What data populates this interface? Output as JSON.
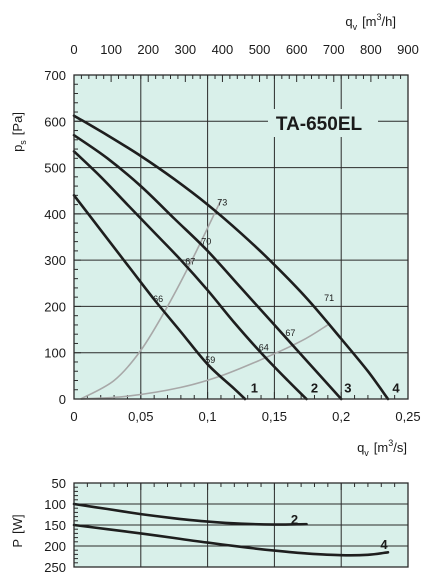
{
  "colors": {
    "plot_bg": "#d9f0ea",
    "grid": "#2b2b2b",
    "curve": "#1e1e1e",
    "efficiency": "#a8a8a8"
  },
  "chart_data": [
    {
      "type": "line",
      "title": "TA-650EL",
      "xlabel_bottom": {
        "base": "q",
        "sub": "v",
        "unit_pre": "[m",
        "unit_sup": "3",
        "unit_post": "/s]"
      },
      "xlabel_top": {
        "base": "q",
        "sub": "v",
        "unit_pre": "[m",
        "unit_sup": "3",
        "unit_post": "/h]"
      },
      "ylabel": {
        "base": "p",
        "sub": "s",
        "unit": "[Pa]"
      },
      "xlim": [
        0,
        0.25
      ],
      "ylim": [
        0,
        700
      ],
      "x_ticks": [
        0,
        0.05,
        0.1,
        0.15,
        0.2,
        0.25
      ],
      "x_tick_labels": [
        "0",
        "0,05",
        "0,1",
        "0,15",
        "0,2",
        "0,25"
      ],
      "top_ticks": [
        0,
        100,
        200,
        300,
        400,
        500,
        600,
        700,
        800,
        900
      ],
      "top_tick_labels": [
        "0",
        "100",
        "200",
        "300",
        "400",
        "500",
        "600",
        "700",
        "800",
        "900"
      ],
      "top_range_m3h": [
        0,
        900
      ],
      "y_ticks": [
        0,
        100,
        200,
        300,
        400,
        500,
        600,
        700
      ],
      "y_tick_labels": [
        "0",
        "100",
        "200",
        "300",
        "400",
        "500",
        "600",
        "700"
      ],
      "grid": true,
      "series": [
        {
          "name": "1",
          "x": [
            0,
            0.02,
            0.04,
            0.06,
            0.08,
            0.1,
            0.12,
            0.128
          ],
          "y": [
            440,
            365,
            290,
            215,
            145,
            75,
            22,
            0
          ]
        },
        {
          "name": "2",
          "x": [
            0,
            0.02,
            0.04,
            0.06,
            0.08,
            0.1,
            0.12,
            0.14,
            0.16,
            0.174
          ],
          "y": [
            535,
            480,
            420,
            360,
            300,
            235,
            165,
            100,
            40,
            0
          ]
        },
        {
          "name": "3",
          "x": [
            0,
            0.025,
            0.05,
            0.075,
            0.1,
            0.125,
            0.15,
            0.175,
            0.2
          ],
          "y": [
            570,
            520,
            460,
            390,
            320,
            240,
            160,
            80,
            0
          ]
        },
        {
          "name": "4",
          "x": [
            0,
            0.025,
            0.05,
            0.075,
            0.1,
            0.125,
            0.15,
            0.175,
            0.2,
            0.22,
            0.235
          ],
          "y": [
            612,
            570,
            525,
            475,
            420,
            358,
            290,
            215,
            130,
            60,
            0
          ]
        }
      ],
      "efficiency_curves": [
        {
          "x": [
            0.005,
            0.03,
            0.05,
            0.07,
            0.09,
            0.11
          ],
          "y": [
            0,
            40,
            105,
            200,
            310,
            430
          ]
        },
        {
          "x": [
            0.005,
            0.04,
            0.08,
            0.11,
            0.14,
            0.17,
            0.19
          ],
          "y": [
            0,
            6,
            25,
            50,
            85,
            125,
            160
          ]
        }
      ],
      "efficiency_labels": [
        {
          "text": "73",
          "x": 0.111,
          "y": 425
        },
        {
          "text": "70",
          "x": 0.099,
          "y": 340
        },
        {
          "text": "67",
          "x": 0.087,
          "y": 297
        },
        {
          "text": "66",
          "x": 0.063,
          "y": 216
        },
        {
          "text": "59",
          "x": 0.102,
          "y": 84
        },
        {
          "text": "71",
          "x": 0.191,
          "y": 218
        },
        {
          "text": "67",
          "x": 0.162,
          "y": 143
        },
        {
          "text": "64",
          "x": 0.142,
          "y": 111
        }
      ],
      "curve_labels": [
        {
          "text": "1",
          "x": 0.135,
          "y": 20
        },
        {
          "text": "2",
          "x": 0.18,
          "y": 20
        },
        {
          "text": "3",
          "x": 0.205,
          "y": 20
        },
        {
          "text": "4",
          "x": 0.241,
          "y": 20
        }
      ]
    },
    {
      "type": "line",
      "ylabel": {
        "base": "P",
        "unit": "[W]"
      },
      "xlim": [
        0,
        0.25
      ],
      "ylim": [
        50,
        250
      ],
      "y_inverted": true,
      "y_ticks": [
        50,
        100,
        150,
        200,
        250
      ],
      "y_tick_labels": [
        "50",
        "100",
        "150",
        "200",
        "250"
      ],
      "grid": true,
      "series": [
        {
          "name": "2",
          "x": [
            0,
            0.025,
            0.05,
            0.075,
            0.1,
            0.125,
            0.15,
            0.174
          ],
          "y": [
            100,
            112,
            124,
            134,
            142,
            147,
            149,
            148
          ]
        },
        {
          "name": "4",
          "x": [
            0,
            0.025,
            0.05,
            0.075,
            0.1,
            0.125,
            0.15,
            0.175,
            0.2,
            0.22,
            0.235
          ],
          "y": [
            150,
            160,
            170,
            181,
            192,
            202,
            211,
            218,
            222,
            221,
            215
          ]
        }
      ],
      "curve_labels": [
        {
          "text": "2",
          "x": 0.165,
          "y": 138
        },
        {
          "text": "4",
          "x": 0.232,
          "y": 198
        }
      ]
    }
  ]
}
